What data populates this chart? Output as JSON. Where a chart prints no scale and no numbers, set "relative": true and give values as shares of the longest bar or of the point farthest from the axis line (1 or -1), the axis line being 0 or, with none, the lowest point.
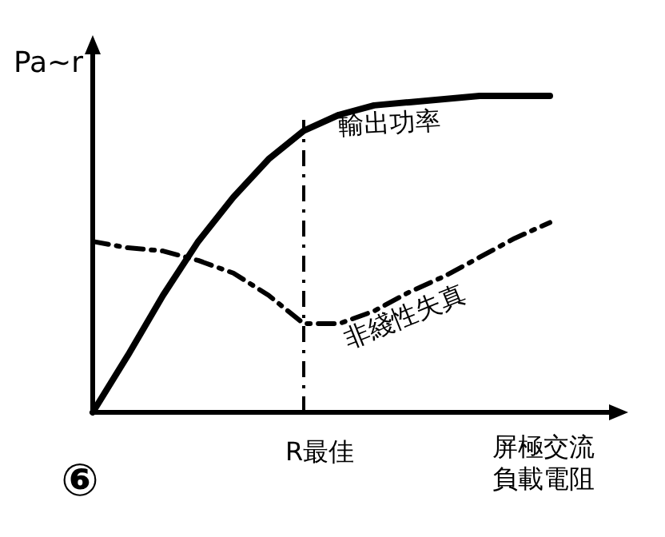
{
  "chart_data": {
    "type": "line",
    "relative": true,
    "ylabel": "Pa~r",
    "xlabel": "屏極交流負載電阻",
    "categories": [
      null,
      null,
      null,
      null,
      null,
      null,
      null,
      null,
      null,
      null,
      null,
      null,
      null,
      null
    ],
    "series": [
      {
        "name": "輸出功率",
        "color": "#000000",
        "line_style": "solid",
        "values": [
          0,
          0.18,
          0.37,
          0.54,
          0.68,
          0.8,
          0.89,
          0.94,
          0.97,
          0.98,
          0.99,
          1,
          1,
          1
        ]
      },
      {
        "name": "非綫性失真",
        "color": "#000000",
        "line_style": "dashdot",
        "values": [
          0.54,
          0.52,
          0.51,
          0.48,
          0.44,
          0.37,
          0.28,
          0.28,
          0.32,
          0.38,
          0.43,
          0.49,
          0.55,
          0.6
        ]
      }
    ],
    "legend": false,
    "annotations": [
      "R最佳",
      "⑥"
    ]
  }
}
